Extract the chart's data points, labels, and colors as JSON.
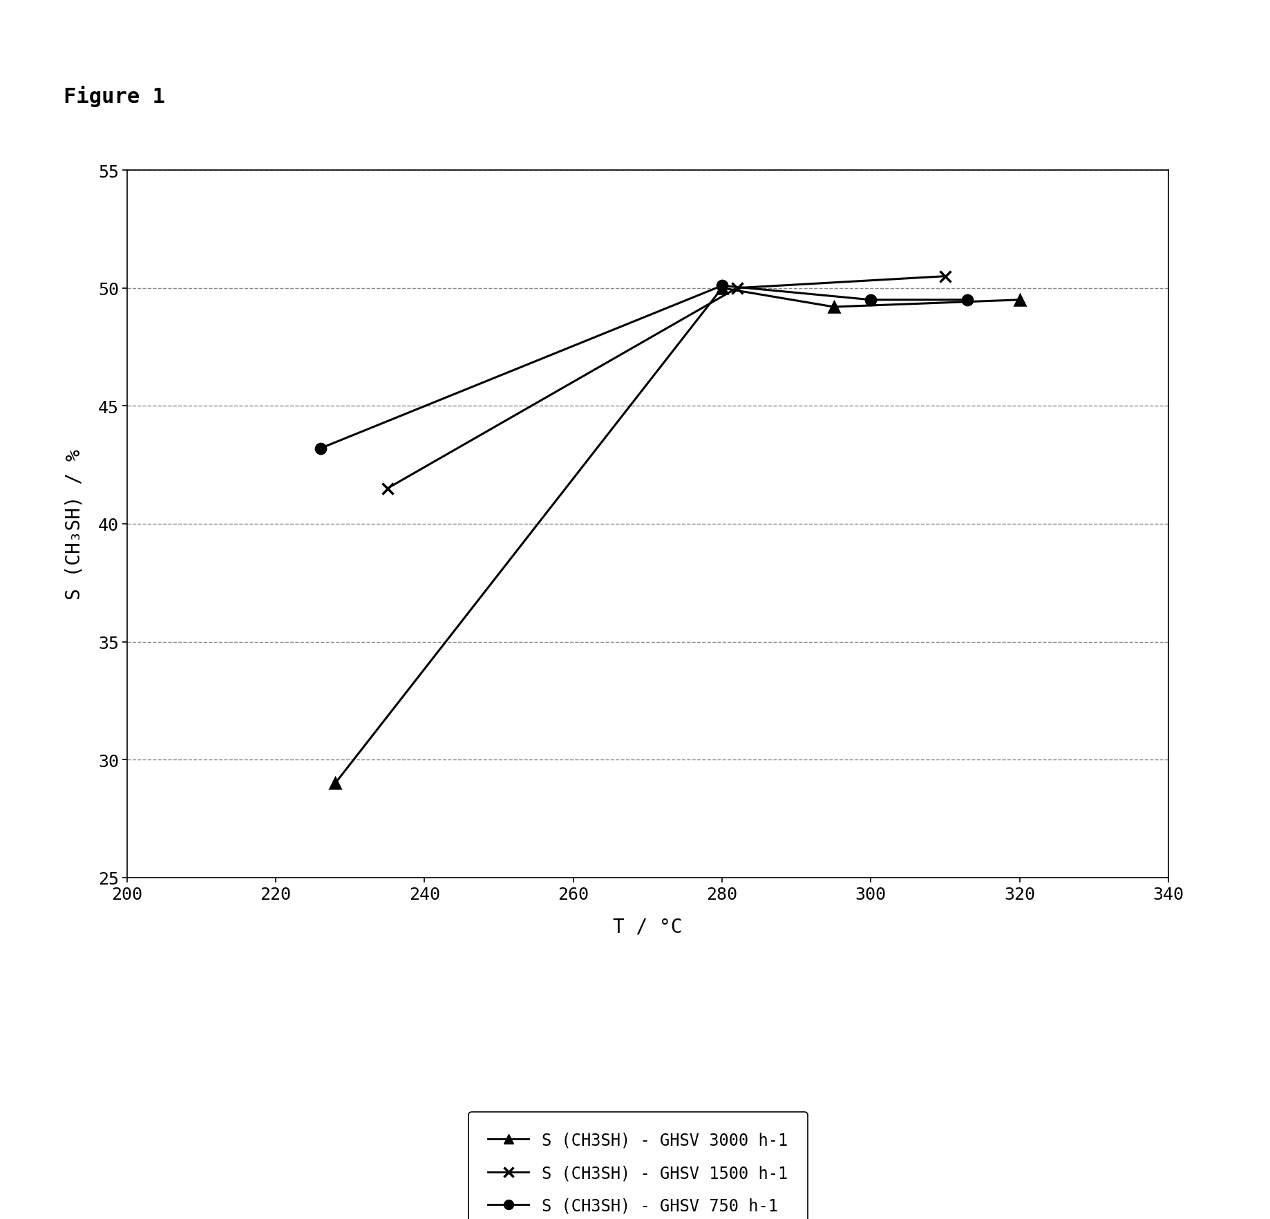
{
  "xlabel": "T / °C",
  "ylabel": "S (CH₃SH) / %",
  "xlim": [
    200,
    340
  ],
  "ylim": [
    25,
    55
  ],
  "xticks": [
    200,
    220,
    240,
    260,
    280,
    300,
    320,
    340
  ],
  "yticks": [
    25,
    30,
    35,
    40,
    45,
    50,
    55
  ],
  "series": [
    {
      "label": "S (CH3SH) - GHSV 3000 h-1",
      "x": [
        228,
        280,
        295,
        320
      ],
      "y": [
        29.0,
        50.0,
        49.2,
        49.5
      ],
      "marker": "^",
      "color": "#000000",
      "markersize": 11,
      "linewidth": 2.2
    },
    {
      "label": "S (CH3SH) - GHSV 1500 h-1",
      "x": [
        235,
        282,
        310
      ],
      "y": [
        41.5,
        50.0,
        50.5
      ],
      "marker": "x",
      "color": "#000000",
      "markersize": 11,
      "linewidth": 2.2
    },
    {
      "label": "S (CH3SH) - GHSV 750 h-1",
      "x": [
        226,
        280,
        300,
        313
      ],
      "y": [
        43.2,
        50.1,
        49.5,
        49.5
      ],
      "marker": "o",
      "color": "#000000",
      "markersize": 11,
      "linewidth": 2.2
    }
  ],
  "grid_color": "#888888",
  "bg_color": "#ffffff",
  "figure_label": "Figure 1",
  "title_fontsize": 22,
  "axis_label_fontsize": 20,
  "tick_fontsize": 18,
  "legend_fontsize": 17
}
